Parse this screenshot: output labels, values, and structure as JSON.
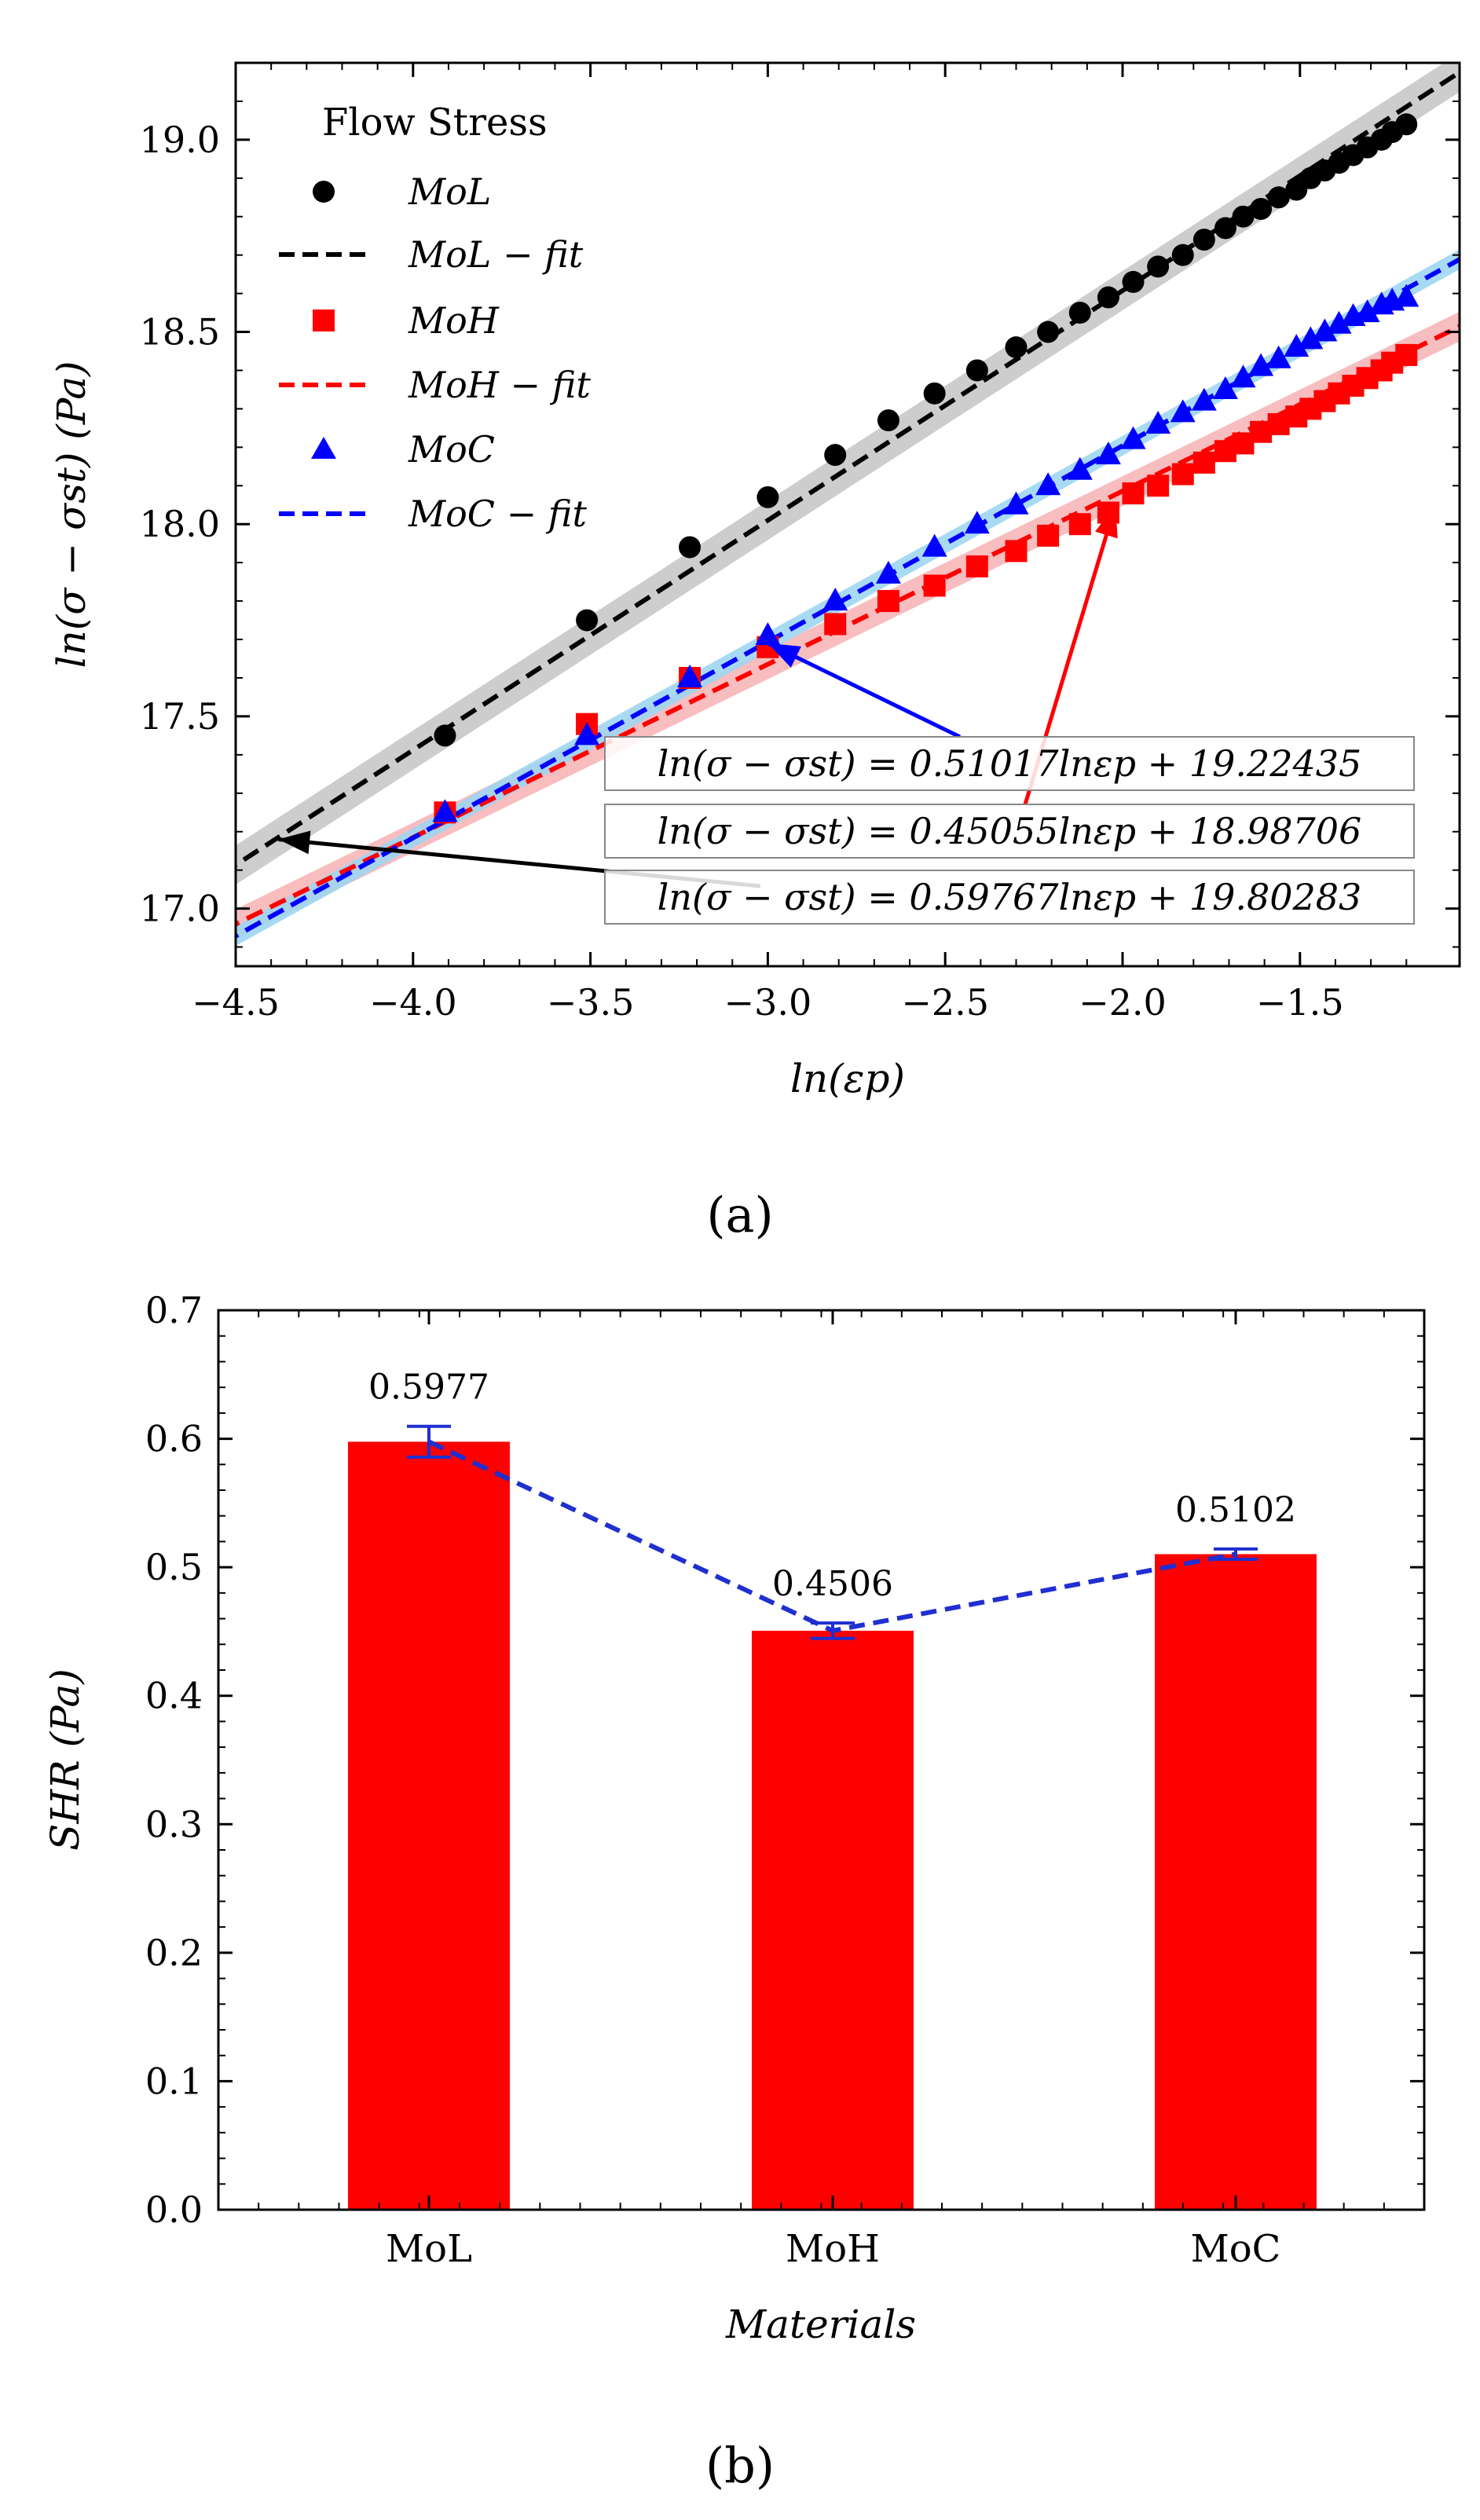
{
  "panel_labels": [
    "(a)",
    "(b)"
  ],
  "colors": {
    "mol": "#000000",
    "moh": "#ff0000",
    "moc": "#0000ff",
    "mol_band": "#c8c8c8",
    "moh_band": "#f7b6b9",
    "moc_band": "#9fd6f2",
    "bar": "#ff0000",
    "trend": "#1f2fd0"
  },
  "chart_data": [
    {
      "type": "scatter",
      "title": "",
      "xlabel": "ln(εp)",
      "ylabel": "ln(σ − σst) (Pa)",
      "xlim": [
        -4.5,
        -1.05
      ],
      "ylim": [
        16.85,
        19.2
      ],
      "x_ticks": [
        -4.5,
        -4.0,
        -3.5,
        -3.0,
        -2.5,
        -2.0,
        -1.5
      ],
      "x_tick_labels": [
        "−4.5",
        "−4.0",
        "−3.5",
        "−3.0",
        "−2.5",
        "−2.0",
        "−1.5"
      ],
      "y_ticks": [
        17.0,
        17.5,
        18.0,
        18.5,
        19.0
      ],
      "y_tick_labels": [
        "17.0",
        "17.5",
        "18.0",
        "18.5",
        "19.0"
      ],
      "legend": {
        "title": "Flow Stress",
        "position": "top-left",
        "entries": [
          "MoL",
          "MoL − fit",
          "MoH",
          "MoH − fit",
          "MoC",
          "MoC − fit"
        ]
      },
      "series": [
        {
          "name": "MoL",
          "marker": "circle",
          "x": [
            -3.91,
            -3.51,
            -3.22,
            -3.0,
            -2.81,
            -2.66,
            -2.53,
            -2.41,
            -2.3,
            -2.21,
            -2.12,
            -2.04,
            -1.97,
            -1.9,
            -1.83,
            -1.77,
            -1.71,
            -1.66,
            -1.61,
            -1.56,
            -1.51,
            -1.47,
            -1.43,
            -1.39,
            -1.35,
            -1.31,
            -1.27,
            -1.24,
            -1.2
          ],
          "y": [
            17.45,
            17.75,
            17.94,
            18.07,
            18.18,
            18.27,
            18.34,
            18.4,
            18.46,
            18.5,
            18.55,
            18.59,
            18.63,
            18.67,
            18.7,
            18.74,
            18.77,
            18.8,
            18.82,
            18.85,
            18.87,
            18.9,
            18.92,
            18.94,
            18.96,
            18.98,
            19.0,
            19.02,
            19.04
          ]
        },
        {
          "name": "MoL − fit",
          "line": "dashed",
          "slope": 0.59767,
          "intercept": 19.80283
        },
        {
          "name": "MoH",
          "marker": "square",
          "x": [
            -3.91,
            -3.51,
            -3.22,
            -3.0,
            -2.81,
            -2.66,
            -2.53,
            -2.41,
            -2.3,
            -2.21,
            -2.12,
            -2.04,
            -1.97,
            -1.9,
            -1.83,
            -1.77,
            -1.71,
            -1.66,
            -1.61,
            -1.56,
            -1.51,
            -1.47,
            -1.43,
            -1.39,
            -1.35,
            -1.31,
            -1.27,
            -1.24,
            -1.2
          ],
          "y": [
            17.25,
            17.48,
            17.6,
            17.68,
            17.74,
            17.8,
            17.84,
            17.89,
            17.93,
            17.97,
            18.0,
            18.03,
            18.08,
            18.1,
            18.13,
            18.16,
            18.19,
            18.21,
            18.24,
            18.26,
            18.28,
            18.3,
            18.32,
            18.34,
            18.36,
            18.38,
            18.4,
            18.42,
            18.44
          ]
        },
        {
          "name": "MoH − fit",
          "line": "dashed",
          "slope": 0.45055,
          "intercept": 18.98706
        },
        {
          "name": "MoC",
          "marker": "triangle",
          "x": [
            -3.91,
            -3.51,
            -3.22,
            -3.0,
            -2.81,
            -2.66,
            -2.53,
            -2.41,
            -2.3,
            -2.21,
            -2.12,
            -2.04,
            -1.97,
            -1.9,
            -1.83,
            -1.77,
            -1.71,
            -1.66,
            -1.61,
            -1.56,
            -1.51,
            -1.47,
            -1.43,
            -1.39,
            -1.35,
            -1.31,
            -1.27,
            -1.24,
            -1.2
          ],
          "y": [
            17.25,
            17.45,
            17.6,
            17.71,
            17.8,
            17.87,
            17.94,
            18.0,
            18.05,
            18.1,
            18.14,
            18.18,
            18.22,
            18.26,
            18.29,
            18.32,
            18.35,
            18.38,
            18.41,
            18.43,
            18.46,
            18.48,
            18.5,
            18.52,
            18.54,
            18.55,
            18.57,
            18.58,
            18.59
          ]
        },
        {
          "name": "MoC − fit",
          "line": "dashed",
          "slope": 0.51017,
          "intercept": 19.22435
        }
      ],
      "annotations": [
        {
          "text": "ln(σ − σst) = 0.51017lnεp + 19.22435",
          "arrow_to": [
            -3.0,
            17.69
          ]
        },
        {
          "text": "ln(σ − σst) = 0.45055lnεp + 18.98706",
          "arrow_to": [
            -2.02,
            18.05
          ]
        },
        {
          "text": "ln(σ − σst) = 0.59767lnεp + 19.80283",
          "arrow_to": [
            -4.38,
            17.18
          ]
        }
      ]
    },
    {
      "type": "bar",
      "title": "",
      "xlabel": "Materials",
      "ylabel": "SHR (Pa)",
      "categories": [
        "MoL",
        "MoH",
        "MoC"
      ],
      "values": [
        0.5977,
        0.4506,
        0.5102
      ],
      "value_labels": [
        "0.5977",
        "0.4506",
        "0.5102"
      ],
      "error": [
        0.012,
        0.006,
        0.004
      ],
      "ylim": [
        0.0,
        0.7
      ],
      "y_ticks": [
        0.0,
        0.1,
        0.2,
        0.3,
        0.4,
        0.5,
        0.6,
        0.7
      ],
      "y_tick_labels": [
        "0.0",
        "0.1",
        "0.2",
        "0.3",
        "0.4",
        "0.5",
        "0.6",
        "0.7"
      ],
      "trend_line": "dashed"
    }
  ]
}
